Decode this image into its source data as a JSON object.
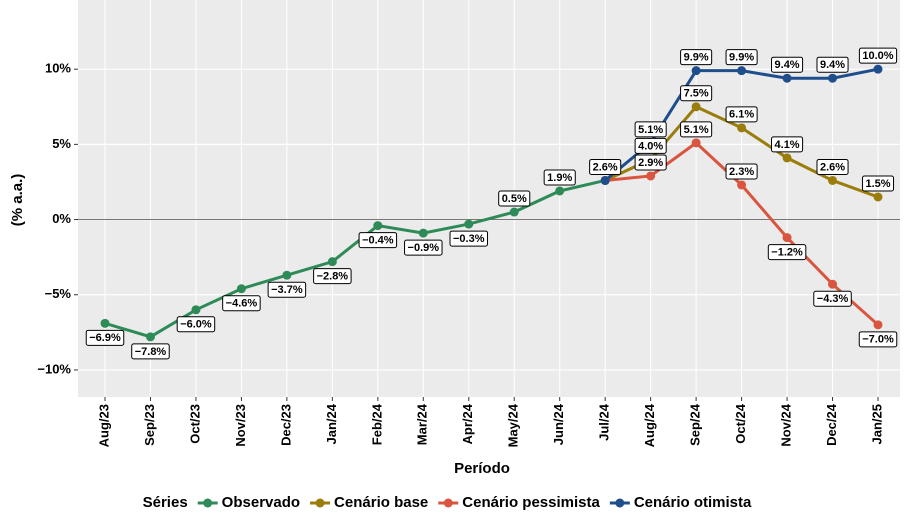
{
  "chart_data": {
    "type": "line",
    "x_label": "Período",
    "y_label": "(% a.a.)",
    "legend_title": "Séries",
    "categories": [
      "Aug/23",
      "Sep/23",
      "Oct/23",
      "Nov/23",
      "Dec/23",
      "Jan/24",
      "Feb/24",
      "Mar/24",
      "Apr/24",
      "May/24",
      "Jun/24",
      "Jul/24",
      "Aug/24",
      "Sep/24",
      "Oct/24",
      "Nov/24",
      "Dec/24",
      "Jan/25"
    ],
    "ylim": [
      -11.8,
      14.6
    ],
    "yticks": [
      {
        "value": -10,
        "label": "−10%"
      },
      {
        "value": -5,
        "label": "−5%"
      },
      {
        "value": 0,
        "label": "0%"
      },
      {
        "value": 5,
        "label": "5%"
      },
      {
        "value": 10,
        "label": "10%"
      }
    ],
    "hline": 0,
    "grid": true,
    "legend": "bottom",
    "series": [
      {
        "name": "Observado",
        "color": "#2e8b57",
        "values": [
          -6.9,
          -7.8,
          -6.0,
          -4.6,
          -3.7,
          -2.8,
          -0.4,
          -0.9,
          -0.3,
          0.5,
          1.9,
          2.6,
          null,
          null,
          null,
          null,
          null,
          null
        ],
        "value_labels": [
          "−6.9%",
          "−7.8%",
          "−6.0%",
          "−4.6%",
          "−3.7%",
          "−2.8%",
          "−0.4%",
          "−0.9%",
          "−0.3%",
          "0.5%",
          "1.9%",
          "2.6%",
          null,
          null,
          null,
          null,
          null,
          null
        ]
      },
      {
        "name": "Cenário base",
        "color": "#9a7d0a",
        "values": [
          null,
          null,
          null,
          null,
          null,
          null,
          null,
          null,
          null,
          null,
          null,
          2.6,
          4.0,
          7.5,
          6.1,
          4.1,
          2.6,
          1.5
        ],
        "value_labels": [
          null,
          null,
          null,
          null,
          null,
          null,
          null,
          null,
          null,
          null,
          null,
          null,
          "4.0%",
          "7.5%",
          "6.1%",
          "4.1%",
          "2.6%",
          "1.5%"
        ]
      },
      {
        "name": "Cenário pessimista",
        "color": "#d9553f",
        "values": [
          null,
          null,
          null,
          null,
          null,
          null,
          null,
          null,
          null,
          null,
          null,
          2.6,
          2.9,
          5.1,
          2.3,
          -1.2,
          -4.3,
          -7.0
        ],
        "value_labels": [
          null,
          null,
          null,
          null,
          null,
          null,
          null,
          null,
          null,
          null,
          null,
          null,
          "2.9%",
          "5.1%",
          "2.3%",
          "−1.2%",
          "−4.3%",
          "−7.0%"
        ]
      },
      {
        "name": "Cenário otimista",
        "color": "#1f4e8c",
        "values": [
          null,
          null,
          null,
          null,
          null,
          null,
          null,
          null,
          null,
          null,
          null,
          2.6,
          5.1,
          9.9,
          9.9,
          9.4,
          9.4,
          10.0
        ],
        "value_labels": [
          null,
          null,
          null,
          null,
          null,
          null,
          null,
          null,
          null,
          null,
          null,
          null,
          "5.1%",
          "9.9%",
          "9.9%",
          "9.4%",
          "9.4%",
          "10.0%"
        ]
      }
    ]
  }
}
